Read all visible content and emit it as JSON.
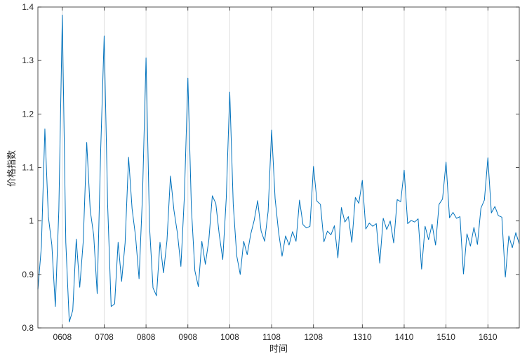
{
  "chart_data": {
    "type": "line",
    "xlabel": "时间",
    "ylabel": "价格指数",
    "ylim": [
      0.8,
      1.4
    ],
    "yticks": [
      "0.8",
      "0.9",
      "1",
      "1.1",
      "1.2",
      "1.3",
      "1.4"
    ],
    "xticks": [
      {
        "label": "0608",
        "at": 7
      },
      {
        "label": "0708",
        "at": 19
      },
      {
        "label": "0808",
        "at": 31
      },
      {
        "label": "0908",
        "at": 43
      },
      {
        "label": "1008",
        "at": 55
      },
      {
        "label": "1108",
        "at": 67
      },
      {
        "label": "1208",
        "at": 79
      },
      {
        "label": "1310",
        "at": 93
      },
      {
        "label": "1410",
        "at": 105
      },
      {
        "label": "1510",
        "at": 117
      },
      {
        "label": "1610",
        "at": 129
      }
    ],
    "xlim": [
      0,
      138
    ],
    "grid": "x",
    "series_color": "#0072BD",
    "series": [
      {
        "values": [
          0.872,
          0.952,
          1.172,
          1.008,
          0.955,
          0.84,
          1.02,
          1.385,
          0.96,
          0.811,
          0.833,
          0.966,
          0.876,
          0.962,
          1.147,
          1.02,
          0.973,
          0.864,
          1.132,
          1.346,
          1.03,
          0.84,
          0.845,
          0.96,
          0.887,
          0.959,
          1.119,
          1.023,
          0.971,
          0.892,
          1.05,
          1.305,
          0.99,
          0.875,
          0.86,
          0.96,
          0.903,
          0.963,
          1.084,
          1.02,
          0.977,
          0.915,
          1.047,
          1.267,
          1.025,
          0.907,
          0.877,
          0.962,
          0.919,
          0.964,
          1.047,
          1.033,
          0.974,
          0.928,
          1.043,
          1.241,
          1.031,
          0.935,
          0.9,
          0.962,
          0.937,
          0.975,
          1.001,
          1.038,
          0.981,
          0.962,
          1.018,
          1.17,
          1.042,
          0.979,
          0.934,
          0.972,
          0.955,
          0.98,
          0.962,
          1.039,
          0.993,
          0.987,
          0.99,
          1.102,
          1.037,
          1.031,
          0.961,
          0.981,
          0.974,
          0.991,
          0.931,
          1.025,
          0.998,
          1.008,
          0.96,
          1.044,
          1.033,
          1.076,
          0.985,
          0.996,
          0.99,
          0.995,
          0.921,
          1.005,
          0.984,
          1.0,
          0.959,
          1.04,
          1.036,
          1.095,
          0.995,
          1.001,
          0.998,
          1.004,
          0.91,
          0.99,
          0.965,
          0.994,
          0.955,
          1.031,
          1.041,
          1.11,
          1.006,
          1.016,
          1.005,
          1.008,
          0.901,
          0.976,
          0.953,
          0.988,
          0.956,
          1.024,
          1.039,
          1.118,
          1.015,
          1.027,
          1.01,
          1.007,
          0.895,
          0.972,
          0.95,
          0.978,
          0.957
        ]
      }
    ]
  }
}
